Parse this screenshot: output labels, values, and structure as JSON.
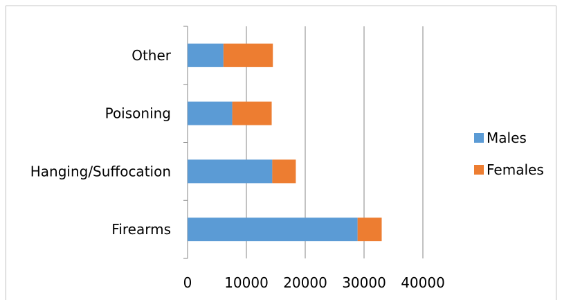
{
  "chart_data": {
    "type": "bar",
    "orientation": "horizontal",
    "stacked": true,
    "categories": [
      "Firearms",
      "Hanging/Suffocation",
      "Poisoning",
      "Other"
    ],
    "series": [
      {
        "name": "Males",
        "values": [
          28900,
          14400,
          7600,
          6100
        ],
        "color": "#5b9bd5"
      },
      {
        "name": "Females",
        "values": [
          4100,
          4000,
          6700,
          8400
        ],
        "color": "#ed7d31"
      }
    ],
    "xlim": [
      0,
      40000
    ],
    "xticks": [
      "0",
      "10000",
      "20000",
      "30000",
      "40000"
    ],
    "grid": "vertical",
    "legend_position": "right"
  }
}
